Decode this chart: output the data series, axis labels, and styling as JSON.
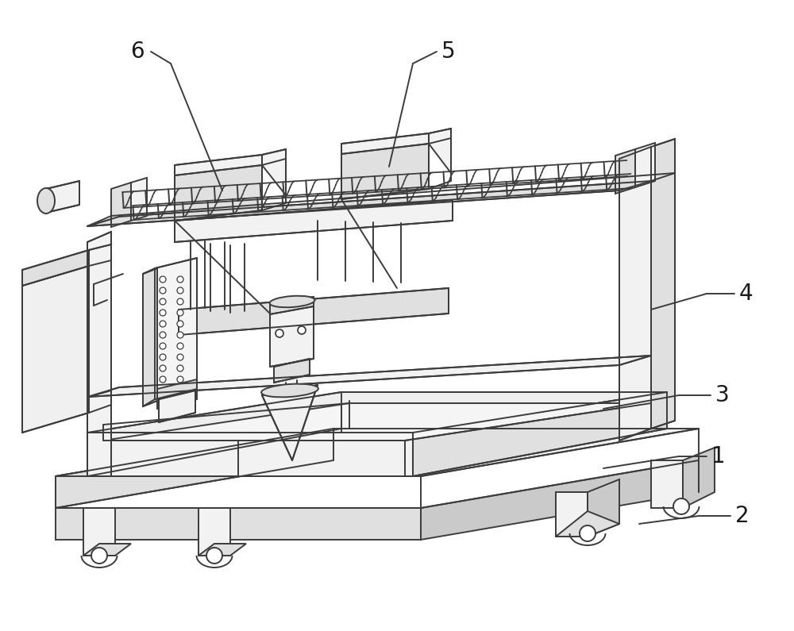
{
  "background_color": "#ffffff",
  "line_color": "#3c3c3c",
  "line_width": 1.4,
  "label_fontsize": 20,
  "figsize": [
    10.0,
    7.95
  ],
  "dpi": 100,
  "light_fill": "#f2f2f2",
  "mid_fill": "#e0e0e0",
  "dark_fill": "#cacaca"
}
